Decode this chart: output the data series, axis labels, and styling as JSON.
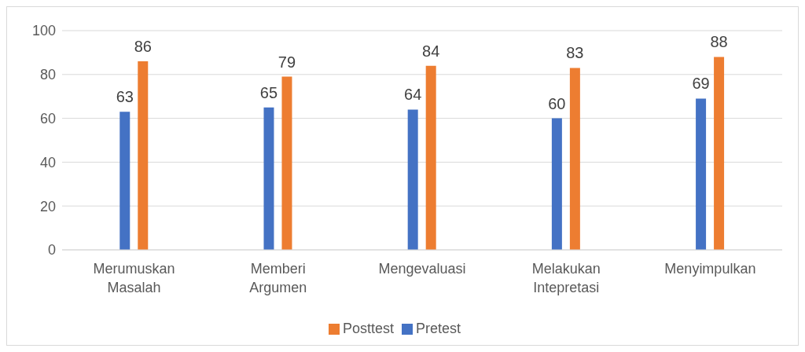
{
  "chart_data": {
    "type": "bar",
    "categories": [
      "Merumuskan Masalah",
      "Memberi Argumen",
      "Mengevaluasi",
      "Melakukan Intepretasi",
      "Menyimpulkan"
    ],
    "series": [
      {
        "name": "Pretest",
        "color": "#4472c4",
        "values": [
          63,
          65,
          64,
          60,
          69
        ]
      },
      {
        "name": "Posttest",
        "color": "#ed7d31",
        "values": [
          86,
          79,
          84,
          83,
          88
        ]
      }
    ],
    "ylim": [
      0,
      100
    ],
    "yticks": [
      0,
      20,
      40,
      60,
      80,
      100
    ],
    "grid": "y",
    "legend": "bottom",
    "data_labels": true
  }
}
